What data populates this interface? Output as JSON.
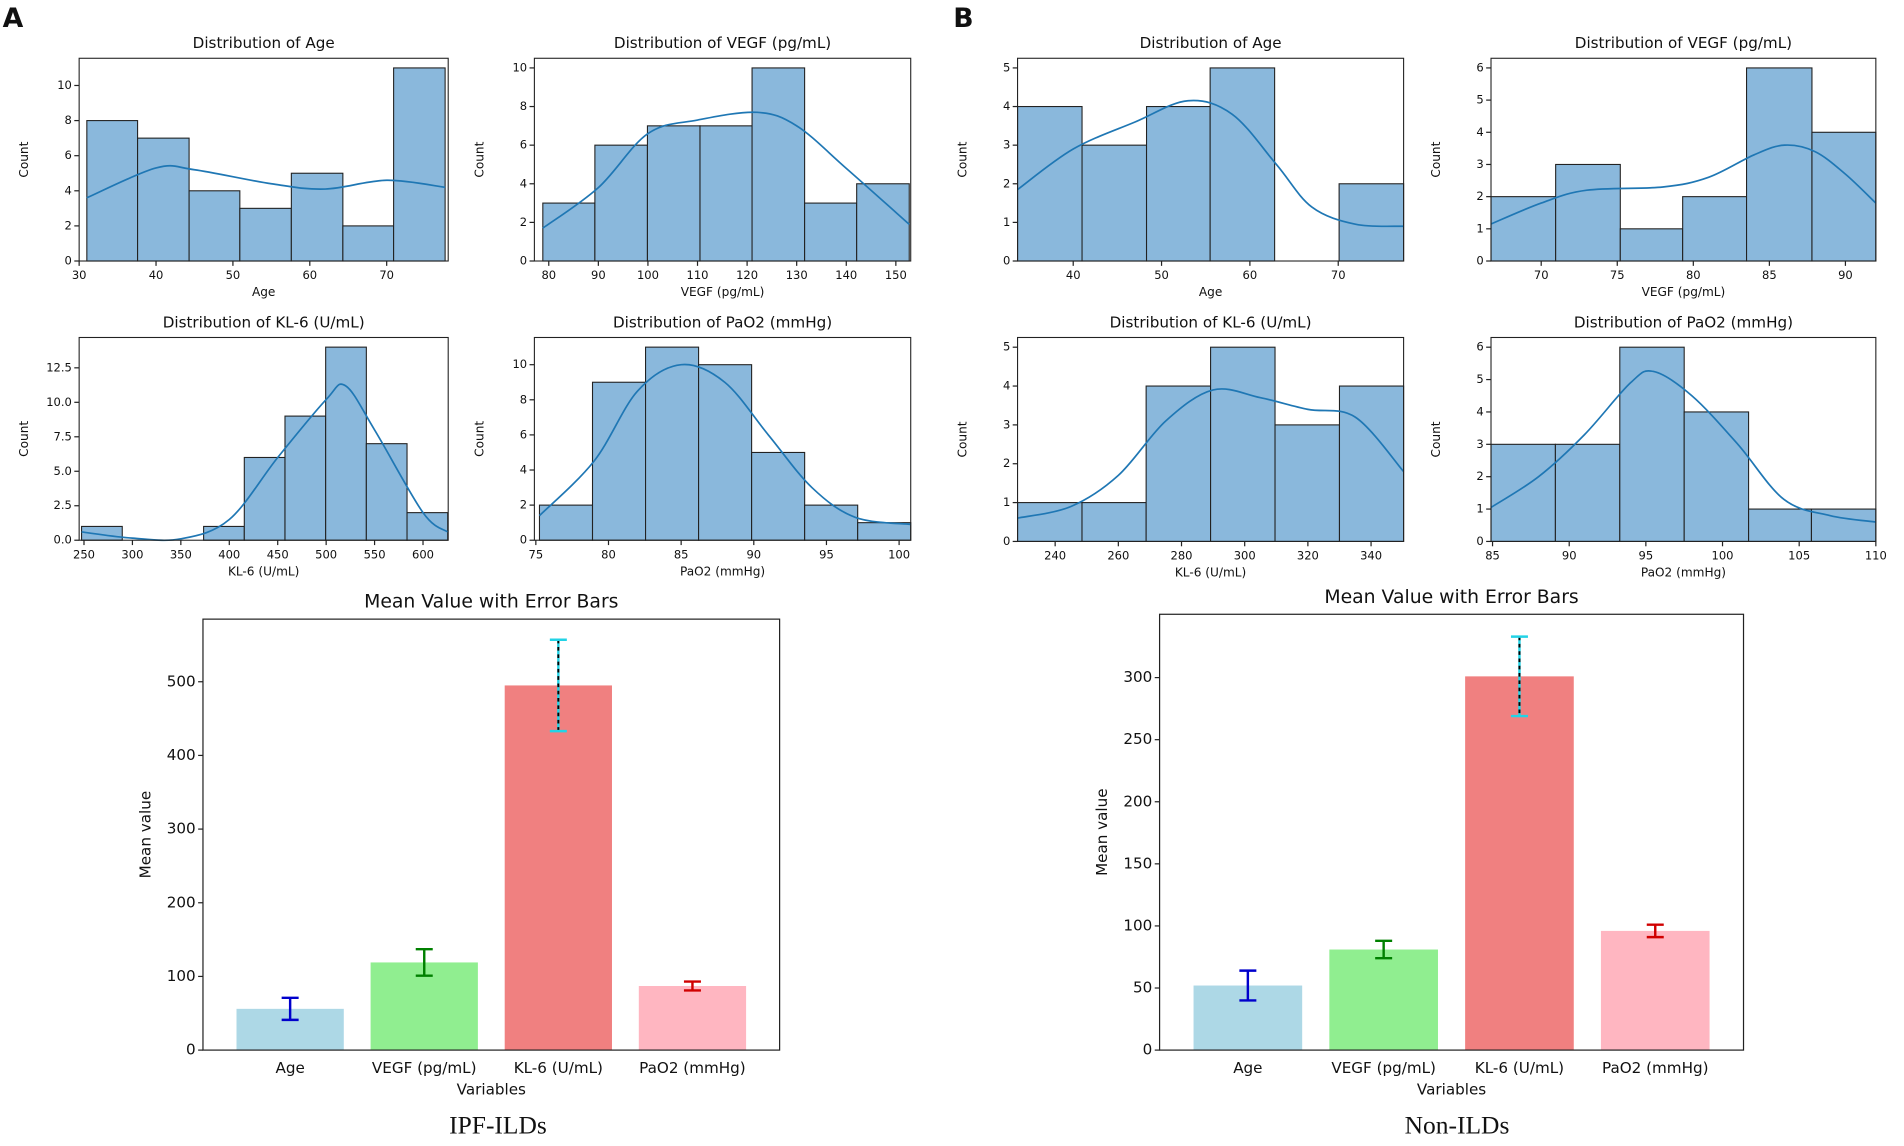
{
  "panels": [
    {
      "label": "A",
      "caption": "IPF-ILDs"
    },
    {
      "label": "B",
      "caption": "Non-ILDs"
    }
  ],
  "chart_data": [
    {
      "type": "histogram",
      "title": "Distribution of Age",
      "xlabel": "Age",
      "ylabel": "Count",
      "color": "#8ab8dc",
      "line_color": "#1f77b4",
      "bins": [
        31,
        37.6,
        44.3,
        50.9,
        57.6,
        64.3,
        70.9,
        77.6
      ],
      "counts": [
        8,
        7,
        4,
        3,
        5,
        2,
        11
      ],
      "kde": {
        "x": [
          31,
          40,
          45,
          55,
          62,
          70,
          77.6
        ],
        "y": [
          3.6,
          5.3,
          5.2,
          4.4,
          4.1,
          4.6,
          4.2
        ]
      },
      "xlim": [
        30,
        78
      ],
      "xticks": [
        30,
        40,
        50,
        60,
        70
      ],
      "ylim": [
        0,
        11.55
      ],
      "yticks": [
        0,
        2,
        4,
        6,
        8,
        10
      ]
    },
    {
      "type": "histogram",
      "title": "Distribution of VEGF (pg/mL)",
      "xlabel": "VEGF (pg/mL)",
      "ylabel": "Count",
      "color": "#8ab8dc",
      "line_color": "#1f77b4",
      "bins": [
        78.8,
        89.3,
        99.9,
        110.5,
        121,
        131.6,
        142.1,
        152.7
      ],
      "counts": [
        3,
        6,
        7,
        7,
        10,
        3,
        4
      ],
      "kde": {
        "x": [
          78.8,
          90,
          100,
          110,
          122,
          130,
          140,
          152.7
        ],
        "y": [
          1.7,
          3.8,
          6.6,
          7.3,
          7.7,
          7.0,
          4.8,
          1.9
        ]
      },
      "xlim": [
        77.1,
        153
      ],
      "xticks": [
        80,
        90,
        100,
        110,
        120,
        130,
        140,
        150
      ],
      "ylim": [
        0,
        10.5
      ],
      "yticks": [
        0,
        2,
        4,
        6,
        8,
        10
      ]
    },
    {
      "type": "histogram",
      "title": "Distribution of KL-6 (U/mL)",
      "xlabel": "KL-6 (U/mL)",
      "ylabel": "Count",
      "color": "#8ab8dc",
      "line_color": "#1f77b4",
      "bins": [
        247.5,
        289.5,
        331.5,
        373.5,
        415.5,
        457.5,
        499.5,
        541.5,
        583.5,
        625.5
      ],
      "counts": [
        1,
        0,
        0,
        1,
        6,
        9,
        14,
        7,
        2
      ],
      "kde": {
        "x": [
          247.5,
          300,
          350,
          400,
          450,
          500,
          520,
          550,
          600,
          625.5
        ],
        "y": [
          0.6,
          0.15,
          0.1,
          1.5,
          6,
          10.2,
          11.2,
          8,
          2,
          0.6
        ]
      },
      "xlim": [
        245,
        626
      ],
      "xticks": [
        250,
        300,
        350,
        400,
        450,
        500,
        550,
        600
      ],
      "ylim": [
        0,
        14.7
      ],
      "yticks": [
        {
          "value": 0,
          "label": "0.0"
        },
        {
          "value": 2.5,
          "label": "2.5"
        },
        {
          "value": 5,
          "label": "5.0"
        },
        {
          "value": 7.5,
          "label": "7.5"
        },
        {
          "value": 10,
          "label": "10.0"
        },
        {
          "value": 12.5,
          "label": "12.5"
        }
      ]
    },
    {
      "type": "histogram",
      "title": "Distribution of PaO2 (mmHg)",
      "xlabel": "PaO2 (mmHg)",
      "ylabel": "Count",
      "color": "#8ab8dc",
      "line_color": "#1f77b4",
      "bins": [
        75.25,
        78.9,
        82.55,
        86.2,
        89.85,
        93.5,
        97.15,
        100.8
      ],
      "counts": [
        2,
        9,
        11,
        10,
        5,
        2,
        1
      ],
      "kde": {
        "x": [
          75.25,
          79,
          82,
          85,
          88,
          91,
          94,
          97,
          100.8
        ],
        "y": [
          1.4,
          4.5,
          8.5,
          10,
          9,
          6,
          3,
          1.3,
          0.9
        ]
      },
      "xlim": [
        74.9,
        100.8
      ],
      "xticks": [
        75,
        80,
        85,
        90,
        95,
        100
      ],
      "ylim": [
        0,
        11.55
      ],
      "yticks": [
        0,
        2,
        4,
        6,
        8,
        10
      ]
    },
    {
      "type": "bar",
      "title": "Mean Value with Error Bars",
      "xlabel": "Variables",
      "ylabel": "Mean value",
      "categories": [
        "Age",
        "VEGF (pg/mL)",
        "KL-6 (U/mL)",
        "PaO2 (mmHg)"
      ],
      "values": [
        56,
        119,
        495,
        87
      ],
      "errors": [
        15,
        18,
        62,
        6
      ],
      "colors": [
        "#add8e6",
        "#90ee90",
        "#f08080",
        "#ffb6c1"
      ],
      "error_colors": [
        "#0000cc",
        "#008000",
        "#22d3e6",
        "#d00000"
      ],
      "ylim": [
        0,
        585
      ],
      "yticks": [
        0,
        100,
        200,
        300,
        400,
        500
      ]
    },
    {
      "type": "histogram",
      "title": "Distribution of Age",
      "xlabel": "Age",
      "ylabel": "Count",
      "color": "#8ab8dc",
      "line_color": "#1f77b4",
      "bins": [
        33.7,
        41,
        48.3,
        55.5,
        62.8,
        70.1,
        77.4
      ],
      "counts": [
        4,
        3,
        4,
        5,
        0,
        2
      ],
      "kde": {
        "x": [
          33.7,
          40,
          47,
          53,
          58,
          63,
          67,
          72,
          77.4
        ],
        "y": [
          1.85,
          2.9,
          3.6,
          4.15,
          3.8,
          2.5,
          1.4,
          0.95,
          0.9
        ]
      },
      "xlim": [
        33.7,
        77.4
      ],
      "xticks": [
        40,
        50,
        60,
        70
      ],
      "ylim": [
        0,
        5.25
      ],
      "yticks": [
        0,
        1,
        2,
        3,
        4,
        5
      ]
    },
    {
      "type": "histogram",
      "title": "Distribution of VEGF (pg/mL)",
      "xlabel": "VEGF (pg/mL)",
      "ylabel": "Count",
      "color": "#8ab8dc",
      "line_color": "#1f77b4",
      "bins": [
        66.7,
        70.95,
        75.2,
        79.3,
        83.5,
        87.8,
        92
      ],
      "counts": [
        2,
        3,
        1,
        2,
        6,
        4
      ],
      "kde": {
        "x": [
          66.7,
          70,
          73,
          78,
          81,
          84,
          86,
          88,
          90,
          92
        ],
        "y": [
          1.15,
          1.8,
          2.2,
          2.3,
          2.6,
          3.3,
          3.6,
          3.4,
          2.7,
          1.8
        ]
      },
      "xlim": [
        66.7,
        92
      ],
      "xticks": [
        70,
        75,
        80,
        85,
        90
      ],
      "ylim": [
        0,
        6.3
      ],
      "yticks": [
        0,
        1,
        2,
        3,
        4,
        5,
        6
      ]
    },
    {
      "type": "histogram",
      "title": "Distribution of KL-6 (U/mL)",
      "xlabel": "KL-6 (U/mL)",
      "ylabel": "Count",
      "color": "#8ab8dc",
      "line_color": "#1f77b4",
      "bins": [
        228.1,
        248.5,
        268.8,
        289.2,
        309.6,
        330,
        350.3
      ],
      "counts": [
        1,
        1,
        4,
        5,
        3,
        4
      ],
      "kde": {
        "x": [
          228.1,
          245,
          260,
          275,
          290,
          305,
          320,
          335,
          350.3
        ],
        "y": [
          0.6,
          0.9,
          1.7,
          3.1,
          3.9,
          3.7,
          3.4,
          3.2,
          1.8
        ]
      },
      "xlim": [
        228.1,
        350.3
      ],
      "xticks": [
        240,
        260,
        280,
        300,
        320,
        340
      ],
      "ylim": [
        0,
        5.25
      ],
      "yticks": [
        0,
        1,
        2,
        3,
        4,
        5
      ]
    },
    {
      "type": "histogram",
      "title": "Distribution of PaO2 (mmHg)",
      "xlabel": "PaO2 (mmHg)",
      "ylabel": "Count",
      "color": "#8ab8dc",
      "line_color": "#1f77b4",
      "bins": [
        84.9,
        89.1,
        93.3,
        97.5,
        101.7,
        105.8,
        110
      ],
      "counts": [
        3,
        3,
        6,
        4,
        1,
        1
      ],
      "kde": {
        "x": [
          84.9,
          88,
          91,
          94,
          95.5,
          98,
          101,
          104,
          107,
          110
        ],
        "y": [
          1.05,
          2,
          3.3,
          4.9,
          5.25,
          4.5,
          3,
          1.3,
          0.8,
          0.6
        ]
      },
      "xlim": [
        84.9,
        110
      ],
      "xticks": [
        85,
        90,
        95,
        100,
        105,
        110
      ],
      "ylim": [
        0,
        6.3
      ],
      "yticks": [
        0,
        1,
        2,
        3,
        4,
        5,
        6
      ]
    },
    {
      "type": "bar",
      "title": "Mean Value with Error Bars",
      "xlabel": "Variables",
      "ylabel": "Mean value",
      "categories": [
        "Age",
        "VEGF (pg/mL)",
        "KL-6 (U/mL)",
        "PaO2 (mmHg)"
      ],
      "values": [
        52,
        81,
        301,
        96
      ],
      "errors": [
        12,
        7,
        32,
        5
      ],
      "colors": [
        "#add8e6",
        "#90ee90",
        "#f08080",
        "#ffb6c1"
      ],
      "error_colors": [
        "#0000cc",
        "#008000",
        "#22d3e6",
        "#d00000"
      ],
      "ylim": [
        0,
        351
      ],
      "yticks": [
        0,
        50,
        100,
        150,
        200,
        250,
        300
      ]
    }
  ]
}
